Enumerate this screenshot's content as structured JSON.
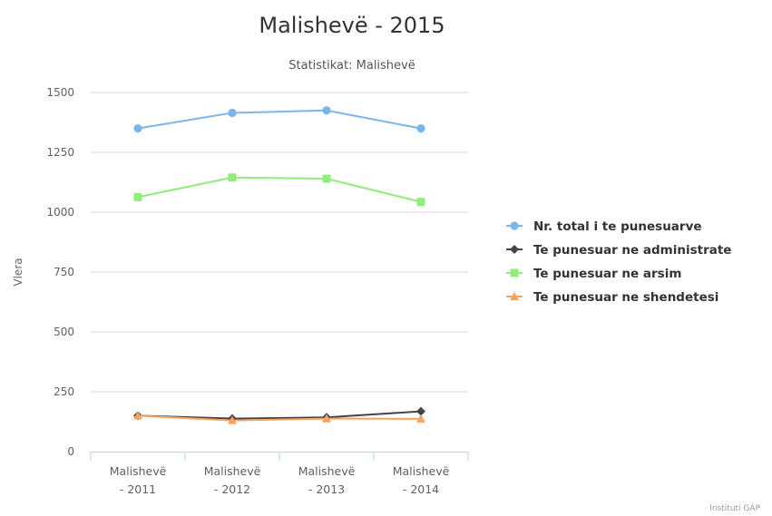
{
  "chart_data": {
    "type": "line",
    "title": "Malishevë - 2015",
    "subtitle": "Statistikat: Malishevë",
    "ylabel": "Vlera",
    "xlabel": "",
    "ylim": [
      0,
      1500
    ],
    "yticks": [
      0,
      250,
      500,
      750,
      1000,
      1250,
      1500
    ],
    "categories": [
      [
        "Malishevë",
        "- 2011"
      ],
      [
        "Malishevë",
        "- 2012"
      ],
      [
        "Malishevë",
        "- 2013"
      ],
      [
        "Malishevë",
        "- 2014"
      ]
    ],
    "grid": true,
    "legend_position": "right",
    "series": [
      {
        "name": "Nr. total i te punesuarve",
        "values": [
          1350,
          1415,
          1425,
          1350
        ],
        "color": "#7cb5ec",
        "marker": "circle"
      },
      {
        "name": "Te punesuar ne administrate",
        "values": [
          150,
          138,
          143,
          168
        ],
        "color": "#434348",
        "marker": "diamond"
      },
      {
        "name": "Te punesuar ne arsim",
        "values": [
          1063,
          1145,
          1140,
          1043
        ],
        "color": "#90ed7d",
        "marker": "square"
      },
      {
        "name": "Te punesuar ne shendetesi",
        "values": [
          150,
          130,
          138,
          137
        ],
        "color": "#f7a35c",
        "marker": "triangle"
      }
    ],
    "credit": "Instituti GAP"
  }
}
